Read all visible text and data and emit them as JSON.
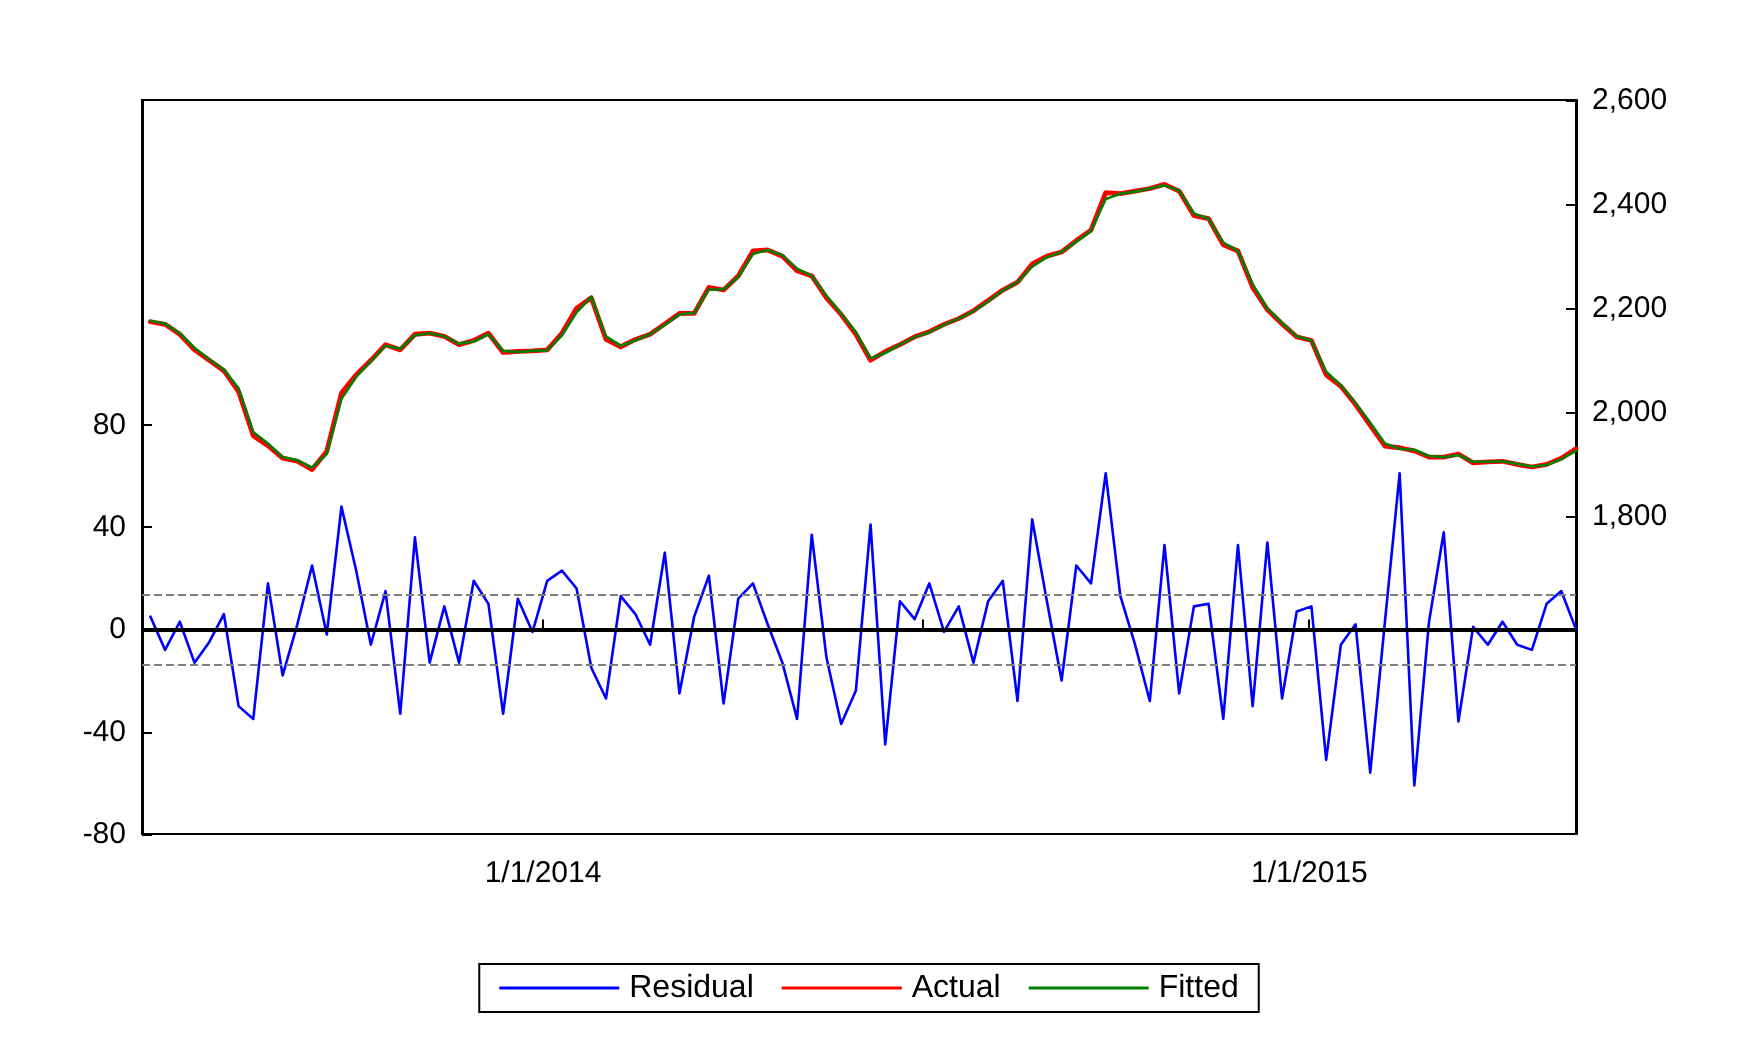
{
  "chart_data": {
    "type": "line",
    "x": [
      "2013-06-28",
      "2013-07-05",
      "2013-07-12",
      "2013-07-19",
      "2013-07-26",
      "2013-08-02",
      "2013-08-09",
      "2013-08-16",
      "2013-08-23",
      "2013-08-30",
      "2013-09-06",
      "2013-09-13",
      "2013-09-20",
      "2013-09-27",
      "2013-10-04",
      "2013-10-11",
      "2013-10-18",
      "2013-10-25",
      "2013-11-01",
      "2013-11-08",
      "2013-11-15",
      "2013-11-22",
      "2013-11-29",
      "2013-12-06",
      "2013-12-13",
      "2013-12-20",
      "2013-12-27",
      "2014-01-03",
      "2014-01-10",
      "2014-01-17",
      "2014-01-24",
      "2014-01-31",
      "2014-02-07",
      "2014-02-14",
      "2014-02-21",
      "2014-02-28",
      "2014-03-07",
      "2014-03-14",
      "2014-03-21",
      "2014-03-28",
      "2014-04-04",
      "2014-04-11",
      "2014-04-18",
      "2014-04-25",
      "2014-05-02",
      "2014-05-09",
      "2014-05-16",
      "2014-05-23",
      "2014-05-30",
      "2014-06-06",
      "2014-06-13",
      "2014-06-20",
      "2014-06-27",
      "2014-07-04",
      "2014-07-11",
      "2014-07-18",
      "2014-07-25",
      "2014-08-01",
      "2014-08-08",
      "2014-08-15",
      "2014-08-22",
      "2014-08-29",
      "2014-09-05",
      "2014-09-12",
      "2014-09-19",
      "2014-09-26",
      "2014-10-03",
      "2014-10-10",
      "2014-10-17",
      "2014-10-24",
      "2014-10-31",
      "2014-11-07",
      "2014-11-14",
      "2014-11-21",
      "2014-11-28",
      "2014-12-05",
      "2014-12-12",
      "2014-12-19",
      "2014-12-26",
      "2015-01-02",
      "2015-01-09",
      "2015-01-16",
      "2015-01-23",
      "2015-01-30",
      "2015-02-06",
      "2015-02-13",
      "2015-02-20",
      "2015-02-27",
      "2015-03-06",
      "2015-03-13",
      "2015-03-20",
      "2015-03-27",
      "2015-04-03",
      "2015-04-10",
      "2015-04-17",
      "2015-04-24",
      "2015-05-01",
      "2015-05-08"
    ],
    "series": [
      {
        "name": "Residual",
        "color": "#0000ff",
        "values": [
          5,
          -8,
          3,
          -13,
          -5,
          6,
          -30,
          -35,
          18,
          -18,
          2,
          25,
          -2,
          48,
          23,
          -6,
          15,
          -33,
          36,
          -13,
          9,
          -13,
          19,
          10,
          -33,
          12,
          -1,
          19,
          23,
          16,
          -15,
          -27,
          13,
          6,
          -6,
          30,
          -25,
          5,
          21,
          -29,
          12,
          18,
          2,
          -13,
          -35,
          37,
          -11,
          -37,
          -24,
          41,
          -45,
          11,
          4,
          18,
          -1,
          9,
          -13,
          11,
          19,
          -28,
          43,
          11,
          -20,
          25,
          18,
          61,
          13,
          -6,
          -28,
          33,
          -25,
          9,
          10,
          -35,
          33,
          -30,
          34,
          -27,
          7,
          9,
          -51,
          -6,
          2,
          -56,
          3,
          61,
          -61,
          3,
          38,
          -36,
          1,
          -6,
          3,
          -6,
          -8,
          10,
          15,
          0
        ]
      },
      {
        "name": "Actual",
        "color": "#ff0000",
        "axis": "y2",
        "values": [
          2174,
          2169,
          2150,
          2120,
          2100,
          2080,
          2040,
          1955,
          1936,
          1912,
          1906,
          1890,
          1925,
          2037,
          2072,
          2100,
          2130,
          2120,
          2150,
          2152,
          2146,
          2130,
          2138,
          2152,
          2115,
          2117,
          2118,
          2120,
          2152,
          2200,
          2220,
          2140,
          2126,
          2140,
          2150,
          2170,
          2190,
          2190,
          2240,
          2235,
          2262,
          2310,
          2312,
          2300,
          2272,
          2262,
          2220,
          2188,
          2150,
          2100,
          2117,
          2130,
          2145,
          2155,
          2169,
          2180,
          2195,
          2215,
          2235,
          2250,
          2285,
          2300,
          2308,
          2330,
          2350,
          2422,
          2420,
          2425,
          2430,
          2438,
          2425,
          2378,
          2372,
          2322,
          2310,
          2240,
          2197,
          2170,
          2145,
          2138,
          2072,
          2050,
          2015,
          1975,
          1935,
          1932,
          1926,
          1914,
          1914,
          1920,
          1903,
          1905,
          1906,
          1900,
          1895,
          1900,
          1912,
          1930
        ]
      },
      {
        "name": "Fitted",
        "color": "#008000",
        "axis": "y2",
        "values": [
          2176,
          2170,
          2152,
          2124,
          2102,
          2082,
          2046,
          1962,
          1940,
          1914,
          1908,
          1894,
          1920,
          2026,
          2068,
          2098,
          2128,
          2122,
          2148,
          2152,
          2146,
          2132,
          2136,
          2150,
          2118,
          2116,
          2118,
          2119,
          2148,
          2192,
          2222,
          2146,
          2128,
          2138,
          2150,
          2168,
          2188,
          2191,
          2236,
          2236,
          2260,
          2304,
          2312,
          2302,
          2276,
          2262,
          2224,
          2190,
          2154,
          2104,
          2114,
          2130,
          2144,
          2154,
          2168,
          2180,
          2194,
          2213,
          2234,
          2250,
          2280,
          2298,
          2308,
          2328,
          2348,
          2410,
          2420,
          2424,
          2430,
          2436,
          2426,
          2382,
          2372,
          2326,
          2310,
          2246,
          2200,
          2172,
          2146,
          2138,
          2078,
          2052,
          2018,
          1980,
          1940,
          1930,
          1928,
          1916,
          1914,
          1918,
          1905,
          1905,
          1906,
          1901,
          1896,
          1899,
          1910,
          1926
        ]
      }
    ],
    "xlim": [
      "2013-06-24",
      "2015-05-08"
    ],
    "xticks": [
      {
        "value": "2014-01-01",
        "label": "1/1/2014"
      },
      {
        "value": "2014-07-01",
        "label": null
      },
      {
        "value": "2015-01-01",
        "label": "1/1/2015"
      }
    ],
    "ylim": [
      -80,
      207
    ],
    "yticks": [
      -80,
      -40,
      0,
      40,
      80
    ],
    "y2lim": [
      1190,
      2600
    ],
    "y2ticks": [
      {
        "value": 1800,
        "label": "1,800"
      },
      {
        "value": 2000,
        "label": "2,000"
      },
      {
        "value": 2200,
        "label": "2,200"
      },
      {
        "value": 2400,
        "label": "2,400"
      },
      {
        "value": 2600,
        "label": "2,600"
      }
    ],
    "ref_lines": [
      {
        "axis": "y",
        "value": 0,
        "color": "#000000",
        "line_style": "solid"
      },
      {
        "axis": "y",
        "value": 14,
        "color": "#808080",
        "line_style": "dashed"
      },
      {
        "axis": "y",
        "value": -14,
        "color": "#808080",
        "line_style": "dashed"
      }
    ],
    "legend": "bottom",
    "grid": false,
    "marker": "none",
    "line_style": "solid"
  }
}
